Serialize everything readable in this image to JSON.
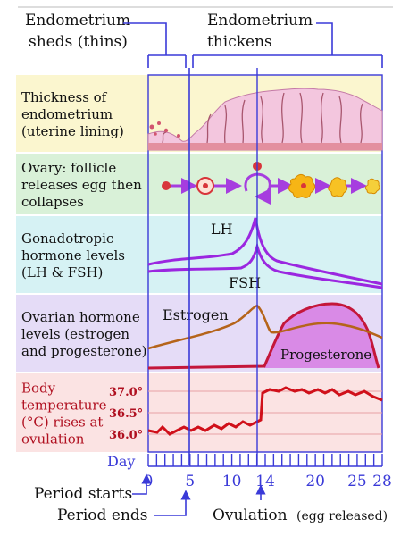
{
  "header": {
    "sheds_line1": "Endometrium",
    "sheds_line2": "sheds (thins)",
    "thickens_line1": "Endometrium",
    "thickens_line2": "thickens"
  },
  "rows": [
    {
      "lines": [
        "Thickness of",
        "endometrium",
        "(uterine lining)"
      ],
      "bg": "#fbf6cf"
    },
    {
      "lines": [
        "Ovary: follicle",
        "releases egg then",
        "collapses"
      ],
      "bg": "#d9f1d8"
    },
    {
      "lines": [
        "Gonadotropic",
        "hormone levels",
        "(LH & FSH)"
      ],
      "bg": "#d6f2f4"
    },
    {
      "lines": [
        "Ovarian hormone",
        "levels (estrogen",
        "and progesterone)"
      ],
      "bg": "#e5dcf7"
    },
    {
      "lines": [
        "Body",
        "temperature",
        "(°C) rises at",
        "ovulation"
      ],
      "bg": "#fbe3e3"
    }
  ],
  "curve_labels": {
    "lh": "LH",
    "fsh": "FSH",
    "estrogen": "Estrogen",
    "progesterone": "Progesterone"
  },
  "temperature_ticks": [
    "37.0°",
    "36.5°",
    "36.0°"
  ],
  "day_label": "Day",
  "day_ticks": [
    "0",
    "5",
    "10",
    "14",
    "20",
    "25",
    "28"
  ],
  "bottom_labels": {
    "period_starts": "Period starts",
    "period_ends": "Period ends",
    "ovulation": "Ovulation",
    "egg_released": "(egg released)"
  },
  "colors": {
    "accent_blue": "#3a3ad8",
    "lh_fsh": "#9b27e0",
    "estrogen": "#b5641a",
    "progesterone": "#c4173a",
    "progesterone_fill": "#d98ae6",
    "temperature": "#d0101a",
    "temp_label": "#b01020",
    "ovary_arrow": "#a63ddf"
  }
}
